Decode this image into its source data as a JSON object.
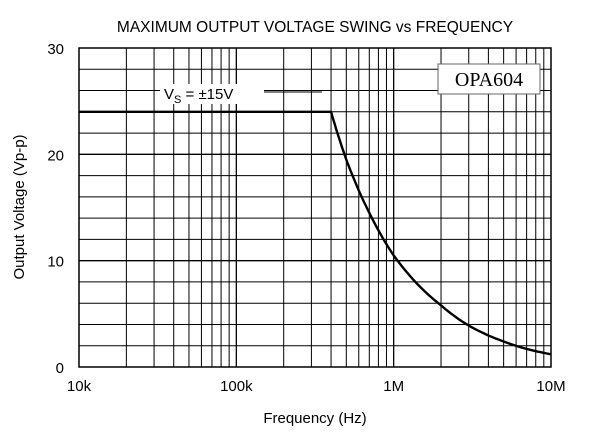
{
  "chart_data": {
    "type": "line",
    "title": "MAXIMUM OUTPUT VOLTAGE SWING vs FREQUENCY",
    "xlabel": "Frequency (Hz)",
    "ylabel": "Output Voltage (Vp-p)",
    "x_scale": "log",
    "xlim": [
      10000,
      10000000
    ],
    "ylim": [
      0,
      30
    ],
    "grid": true,
    "x_ticks": [
      {
        "value": 10000,
        "label": "10k"
      },
      {
        "value": 100000,
        "label": "100k"
      },
      {
        "value": 1000000,
        "label": "1M"
      },
      {
        "value": 10000000,
        "label": "10M"
      }
    ],
    "y_ticks": [
      {
        "value": 0,
        "label": "0"
      },
      {
        "value": 10,
        "label": "10"
      },
      {
        "value": 20,
        "label": "20"
      },
      {
        "value": 30,
        "label": "30"
      }
    ],
    "series": [
      {
        "name": "",
        "x": [
          10000,
          100000,
          200000,
          400000,
          500000,
          700000,
          1000000,
          2000000,
          3000000,
          5000000,
          7000000,
          10000000
        ],
        "y": [
          24,
          24,
          24,
          24,
          19.5,
          14.5,
          10.5,
          5.8,
          3.9,
          2.4,
          1.7,
          1.2
        ]
      }
    ],
    "annotations": {
      "supply_prefix": "V",
      "supply_subscript": "S",
      "supply_value": " = ±15V",
      "part_number": "OPA604"
    }
  }
}
